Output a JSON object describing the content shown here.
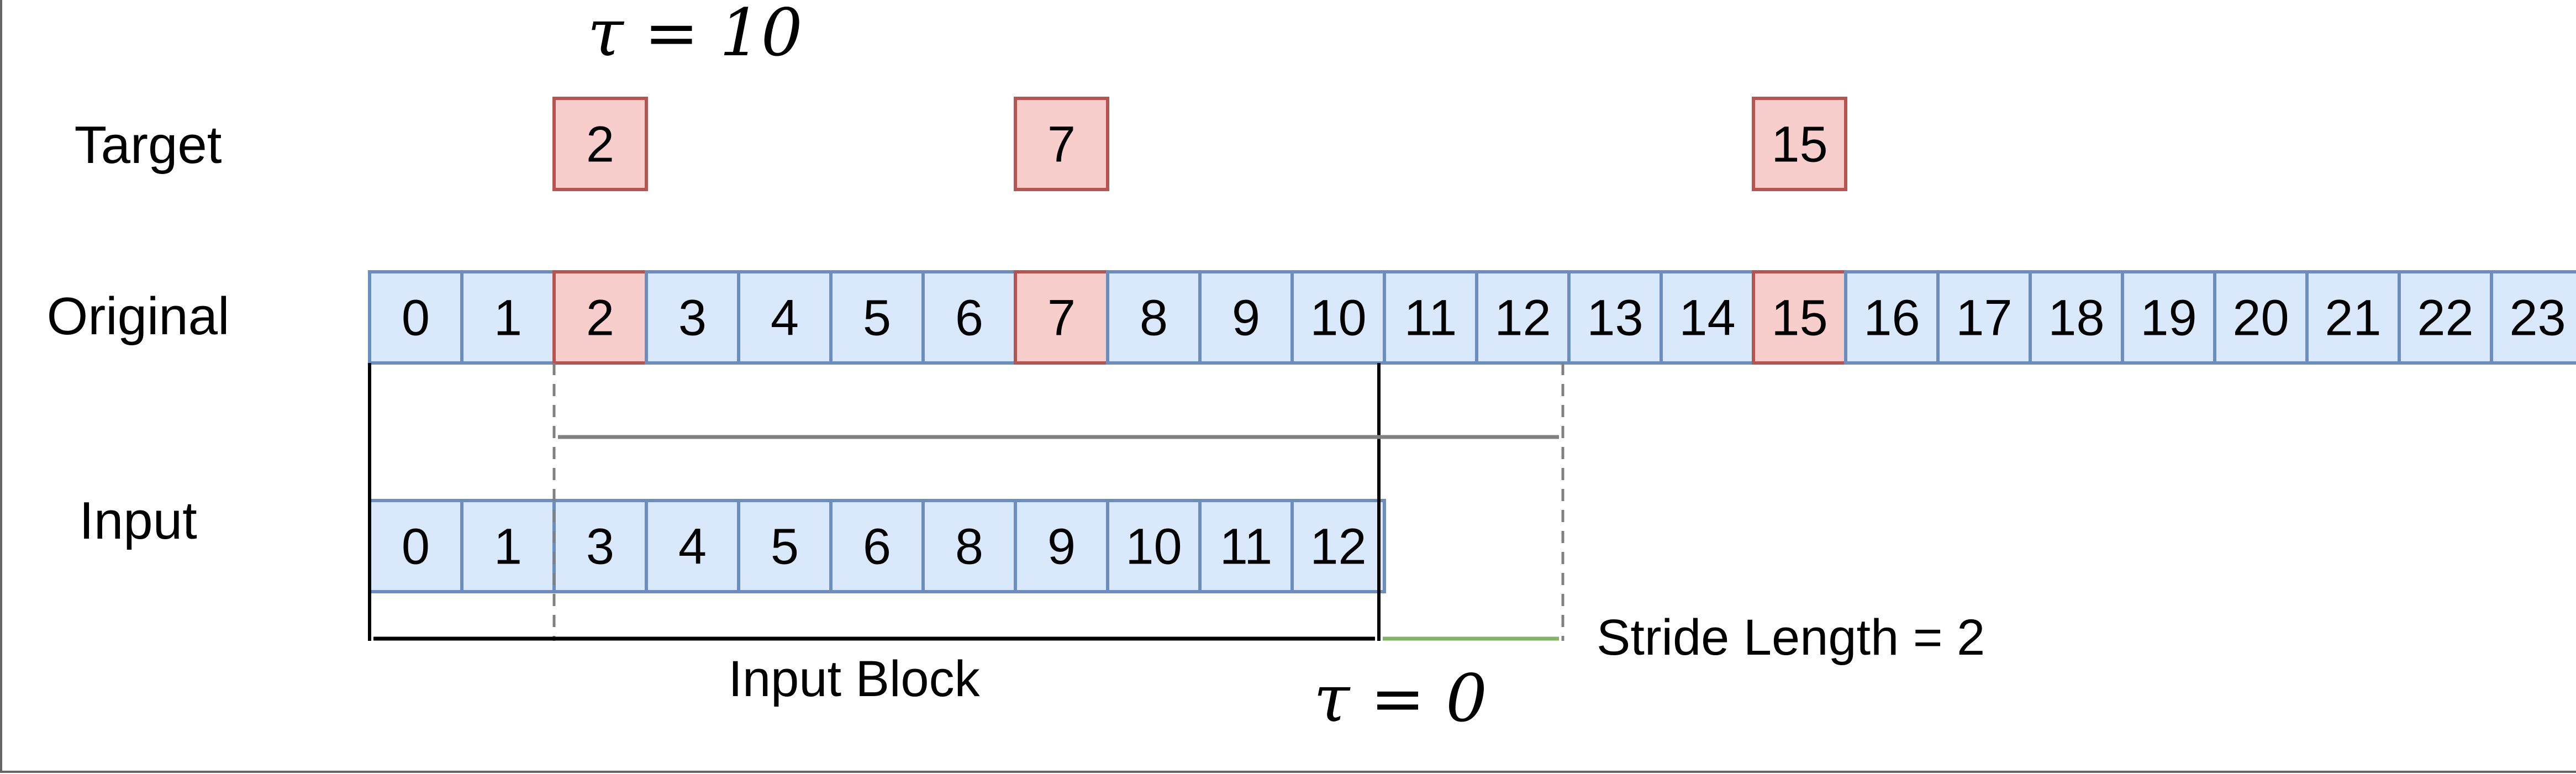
{
  "tau_top": "τ = 10",
  "tau_bottom": "τ = 0",
  "labels": {
    "target": "Target",
    "original": "Original",
    "input": "Input",
    "input_block": "Input Block",
    "stride": "Stride Length = 2"
  },
  "original": {
    "cells": [
      "0",
      "1",
      "2",
      "3",
      "4",
      "5",
      "6",
      "7",
      "8",
      "9",
      "10",
      "11",
      "12",
      "13",
      "14",
      "15",
      "16",
      "17",
      "18",
      "19",
      "20",
      "21",
      "22",
      "23"
    ],
    "highlighted": [
      "2",
      "7",
      "15"
    ]
  },
  "targets": [
    "2",
    "7",
    "15"
  ],
  "input": {
    "cells": [
      "0",
      "1",
      "3",
      "4",
      "5",
      "6",
      "8",
      "9",
      "10",
      "11",
      "12"
    ]
  },
  "colors": {
    "blue_fill": "#dae8fc",
    "blue_stroke": "#6c8ebf",
    "red_fill": "#f8cecc",
    "red_stroke": "#b85450",
    "gray_arrow": "#808080",
    "green_arrow": "#82b366",
    "black": "#000000"
  }
}
